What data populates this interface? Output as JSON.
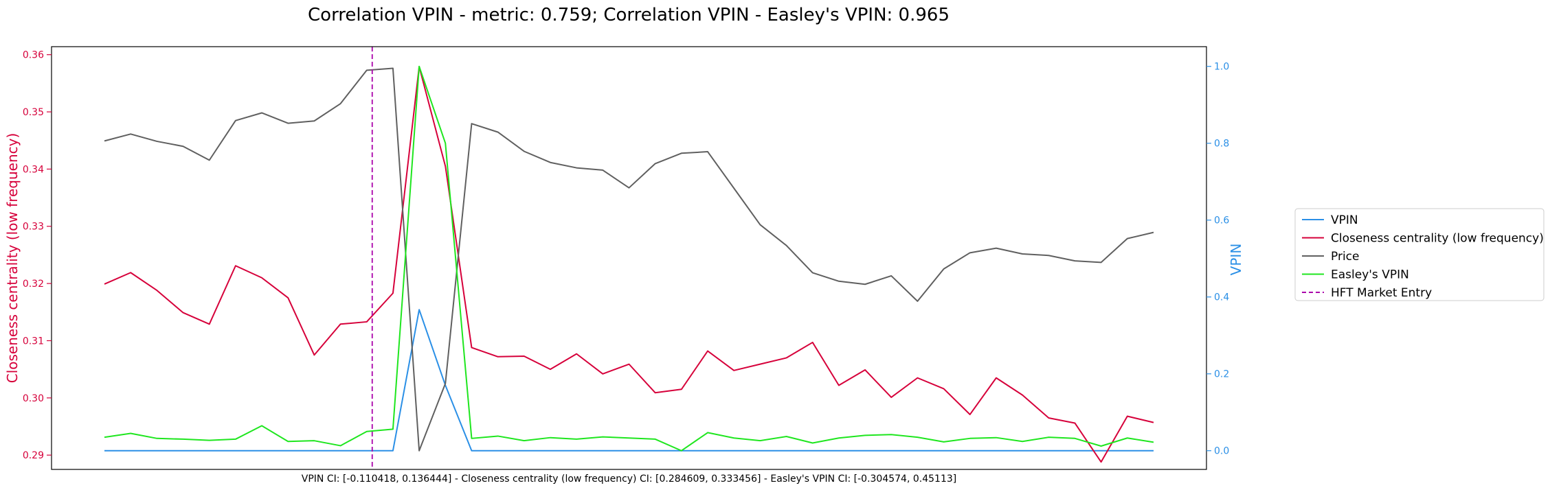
{
  "chart_data": {
    "type": "line",
    "title": "Correlation VPIN - metric: 0.759; Correlation VPIN - Easley's VPIN: 0.965",
    "ylabel_left": "Closeness centrality (low frequency)",
    "ylabel_right": "VPIN",
    "xlabel": "VPIN CI: [-0.110418, 0.136444] - Closeness centrality (low frequency) CI: [0.284609, 0.333456] - Easley's VPIN CI: [-0.304574, 0.45113]",
    "ylim_left": [
      0.2875,
      0.3614
    ],
    "ylim_right": [
      -0.0487,
      1.0513
    ],
    "yticks_left": [
      "0.29",
      "0.30",
      "0.31",
      "0.32",
      "0.33",
      "0.34",
      "0.35",
      "0.36"
    ],
    "yticks_right": [
      "0.0",
      "0.2",
      "0.4",
      "0.6",
      "0.8",
      "1.0"
    ],
    "left_color": "#d6003a",
    "right_color": "#2a8fe6",
    "grid": false,
    "legend_position": "center-right outside",
    "x_count": 41,
    "vline": {
      "name": "HFT Market Entry",
      "x": 10,
      "color": "#aa00aa"
    },
    "series": [
      {
        "name": "VPIN",
        "axis": "right",
        "color": "#2a8fe6",
        "values": [
          0,
          0,
          0,
          0,
          0,
          0,
          0,
          0,
          0,
          0,
          0,
          0,
          0.367,
          0.17,
          0,
          0,
          0,
          0,
          0,
          0,
          0,
          0,
          0,
          0,
          0,
          0,
          0,
          0,
          0,
          0,
          0,
          0,
          0,
          0,
          0,
          0,
          0,
          0,
          0,
          0,
          0
        ]
      },
      {
        "name": "Closeness centrality (low frequency)",
        "axis": "left",
        "color": "#d6003a",
        "values": [
          0.3199,
          0.3219,
          0.3188,
          0.3149,
          0.3129,
          0.3231,
          0.321,
          0.3175,
          0.3075,
          0.3129,
          0.3133,
          0.3183,
          0.3579,
          0.3405,
          0.3088,
          0.3072,
          0.3073,
          0.305,
          0.3077,
          0.3042,
          0.3059,
          0.3009,
          0.3015,
          0.3082,
          0.3048,
          0.3059,
          0.307,
          0.3097,
          0.3022,
          0.3049,
          0.3001,
          0.3035,
          0.3016,
          0.2971,
          0.3035,
          0.3005,
          0.2965,
          0.2956,
          0.2888,
          0.2968,
          0.2957
        ]
      },
      {
        "name": "Price",
        "axis": "right",
        "color": "#5f5f5f",
        "values": [
          0.806,
          0.824,
          0.805,
          0.792,
          0.756,
          0.859,
          0.879,
          0.852,
          0.858,
          0.903,
          0.99,
          0.995,
          0.0,
          0.175,
          0.851,
          0.829,
          0.779,
          0.75,
          0.736,
          0.73,
          0.684,
          0.747,
          0.774,
          0.778,
          0.683,
          0.588,
          0.534,
          0.463,
          0.441,
          0.433,
          0.455,
          0.389,
          0.473,
          0.515,
          0.527,
          0.512,
          0.508,
          0.494,
          0.49,
          0.552,
          0.568
        ]
      },
      {
        "name": "Easley's VPIN",
        "axis": "right",
        "color": "#1ee61e",
        "values": [
          0.035,
          0.045,
          0.032,
          0.03,
          0.027,
          0.03,
          0.065,
          0.024,
          0.026,
          0.013,
          0.05,
          0.056,
          1.0,
          0.8,
          0.032,
          0.038,
          0.026,
          0.034,
          0.03,
          0.036,
          0.033,
          0.03,
          0.0,
          0.047,
          0.033,
          0.026,
          0.037,
          0.02,
          0.033,
          0.04,
          0.042,
          0.035,
          0.023,
          0.032,
          0.034,
          0.024,
          0.035,
          0.032,
          0.012,
          0.033,
          0.022
        ]
      }
    ]
  },
  "legend": {
    "items": [
      {
        "label": "VPIN",
        "color": "#2a8fe6",
        "dashed": false
      },
      {
        "label": "Closeness centrality (low frequency)",
        "color": "#d6003a",
        "dashed": false
      },
      {
        "label": "Price",
        "color": "#5f5f5f",
        "dashed": false
      },
      {
        "label": "Easley's VPIN",
        "color": "#1ee61e",
        "dashed": false
      },
      {
        "label": "HFT Market Entry",
        "color": "#aa00aa",
        "dashed": true
      }
    ]
  }
}
